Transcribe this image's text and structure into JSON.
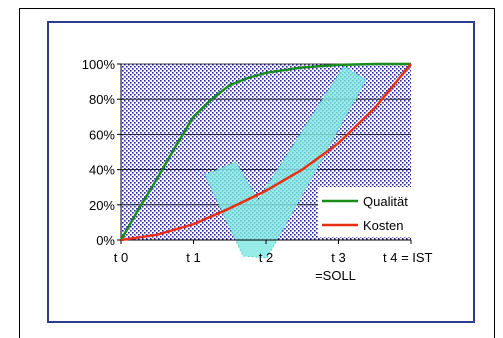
{
  "chart_data": {
    "type": "line",
    "x": [
      "t 0",
      "t 1",
      "t 2",
      "t 3",
      "t 4 = IST"
    ],
    "x_sublabels": [
      "",
      "",
      "",
      "=SOLL",
      ""
    ],
    "y_ticks": [
      "0%",
      "20%",
      "40%",
      "60%",
      "80%",
      "100%"
    ],
    "ylim": [
      0,
      100
    ],
    "grid": true,
    "legend_position": "bottom-right",
    "series": [
      {
        "name": "Qualität",
        "color": "#1a8c1a",
        "x": [
          0,
          0.25,
          0.5,
          0.75,
          1.0,
          1.25,
          1.5,
          1.75,
          2.0,
          2.5,
          3.0,
          3.5,
          4.0
        ],
        "values": [
          0,
          18,
          35,
          53,
          70,
          80,
          88,
          92,
          95,
          98,
          99.5,
          100,
          100
        ]
      },
      {
        "name": "Kosten",
        "color": "#e83010",
        "x": [
          0,
          0.5,
          1.0,
          1.5,
          2.0,
          2.5,
          3.0,
          3.5,
          4.0
        ],
        "values": [
          0,
          3,
          9,
          18,
          28,
          40,
          55,
          75,
          100
        ]
      }
    ],
    "colors": {
      "plot_background": "#2424a8",
      "grid_line": "#000000",
      "frame": "#2d3c8c",
      "checkmark": "#7fe8e0"
    }
  }
}
